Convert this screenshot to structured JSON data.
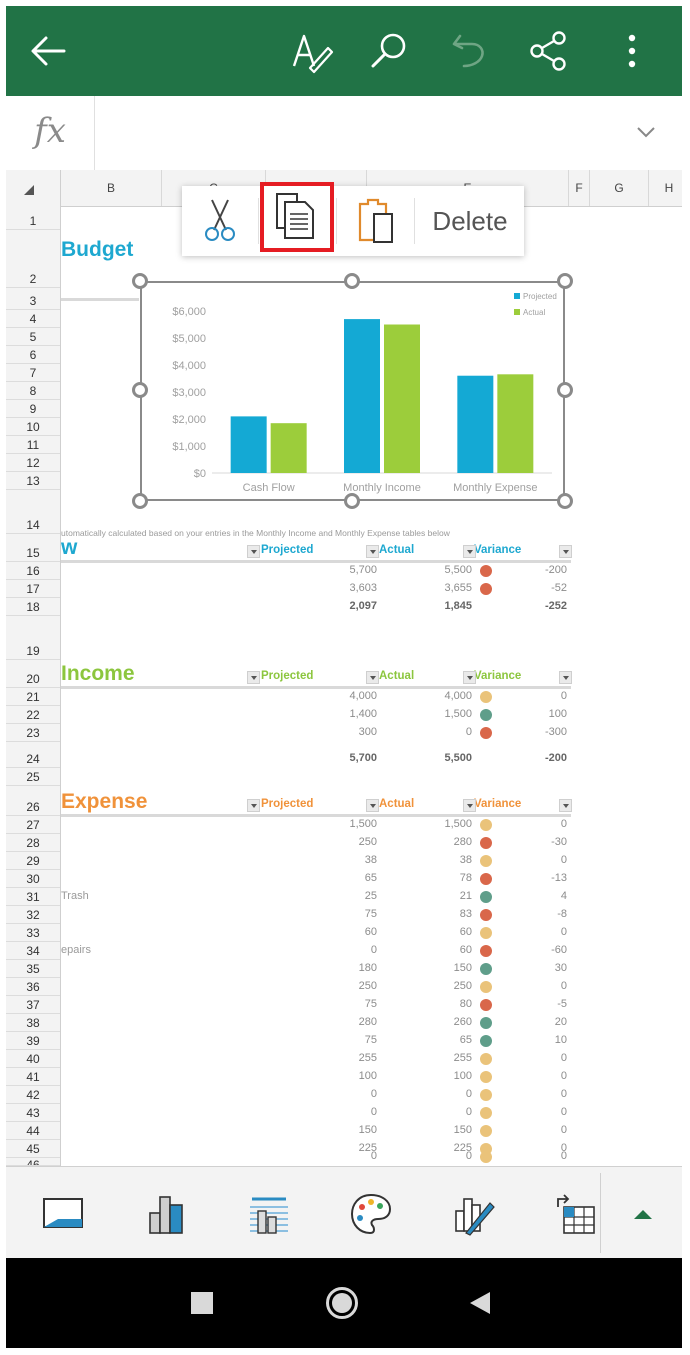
{
  "toolbar": {
    "icons": [
      "back-arrow-icon",
      "draw-pen-icon",
      "search-icon",
      "undo-icon",
      "share-icon",
      "more-icon"
    ],
    "theme_color": "#217346"
  },
  "formula_bar": {
    "fx_label": "fx",
    "value": ""
  },
  "columns": [
    "B",
    "C",
    "D",
    "E",
    "F",
    "G",
    "H"
  ],
  "rows": [
    "1",
    "2",
    "3",
    "4",
    "5",
    "6",
    "7",
    "8",
    "9",
    "10",
    "11",
    "12",
    "13",
    "14",
    "15",
    "16",
    "17",
    "18",
    "19",
    "20",
    "21",
    "22",
    "23",
    "24",
    "25",
    "26",
    "27",
    "28",
    "29",
    "30",
    "31",
    "32",
    "33",
    "34",
    "35",
    "36",
    "37",
    "38",
    "39",
    "40",
    "41",
    "42",
    "43",
    "44",
    "45",
    "46"
  ],
  "context_menu": {
    "items": [
      "cut",
      "copy",
      "paste"
    ],
    "delete_label": "Delete",
    "highlighted": "copy",
    "highlight_color": "#e51c23"
  },
  "sheet": {
    "title": "Budget",
    "note": "utomatically calculated based on your entries in the Monthly Income and Monthly Expense tables below",
    "col_projected": "Projected",
    "col_actual": "Actual",
    "col_variance": "Variance",
    "cashflow": {
      "title": "w",
      "rows": [
        {
          "label": "",
          "projected": "5,700",
          "actual": "5,500",
          "variance": "-200",
          "status": "red"
        },
        {
          "label": "",
          "projected": "3,603",
          "actual": "3,655",
          "variance": "-52",
          "status": "red"
        },
        {
          "label": "",
          "projected": "2,097",
          "actual": "1,845",
          "variance": "-252",
          "status": "none",
          "bold": true
        }
      ]
    },
    "income": {
      "title": "Income",
      "rows": [
        {
          "label": "",
          "projected": "4,000",
          "actual": "4,000",
          "variance": "0",
          "status": "yellow"
        },
        {
          "label": "",
          "projected": "1,400",
          "actual": "1,500",
          "variance": "100",
          "status": "green"
        },
        {
          "label": "",
          "projected": "300",
          "actual": "0",
          "variance": "-300",
          "status": "red"
        },
        {
          "label": "",
          "projected": "5,700",
          "actual": "5,500",
          "variance": "-200",
          "status": "none",
          "bold": true
        }
      ]
    },
    "expense": {
      "title": "Expense",
      "rows": [
        {
          "label": "",
          "projected": "1,500",
          "actual": "1,500",
          "variance": "0",
          "status": "yellow"
        },
        {
          "label": "",
          "projected": "250",
          "actual": "280",
          "variance": "-30",
          "status": "red"
        },
        {
          "label": "",
          "projected": "38",
          "actual": "38",
          "variance": "0",
          "status": "yellow"
        },
        {
          "label": "",
          "projected": "65",
          "actual": "78",
          "variance": "-13",
          "status": "red"
        },
        {
          "label": "Trash",
          "projected": "25",
          "actual": "21",
          "variance": "4",
          "status": "green"
        },
        {
          "label": "",
          "projected": "75",
          "actual": "83",
          "variance": "-8",
          "status": "red"
        },
        {
          "label": "",
          "projected": "60",
          "actual": "60",
          "variance": "0",
          "status": "yellow"
        },
        {
          "label": "epairs",
          "projected": "0",
          "actual": "60",
          "variance": "-60",
          "status": "red"
        },
        {
          "label": "",
          "projected": "180",
          "actual": "150",
          "variance": "30",
          "status": "green"
        },
        {
          "label": "",
          "projected": "250",
          "actual": "250",
          "variance": "0",
          "status": "yellow"
        },
        {
          "label": "",
          "projected": "75",
          "actual": "80",
          "variance": "-5",
          "status": "red"
        },
        {
          "label": "",
          "projected": "280",
          "actual": "260",
          "variance": "20",
          "status": "green"
        },
        {
          "label": "",
          "projected": "75",
          "actual": "65",
          "variance": "10",
          "status": "green"
        },
        {
          "label": "",
          "projected": "255",
          "actual": "255",
          "variance": "0",
          "status": "yellow"
        },
        {
          "label": "",
          "projected": "100",
          "actual": "100",
          "variance": "0",
          "status": "yellow"
        },
        {
          "label": "",
          "projected": "0",
          "actual": "0",
          "variance": "0",
          "status": "yellow"
        },
        {
          "label": "",
          "projected": "0",
          "actual": "0",
          "variance": "0",
          "status": "yellow"
        },
        {
          "label": "",
          "projected": "150",
          "actual": "150",
          "variance": "0",
          "status": "yellow"
        },
        {
          "label": "",
          "projected": "225",
          "actual": "225",
          "variance": "0",
          "status": "yellow"
        },
        {
          "label": "",
          "projected": "0",
          "actual": "0",
          "variance": "0",
          "status": "yellow"
        }
      ]
    }
  },
  "colors": {
    "cashflow_title": "#1ea8d0",
    "income_title": "#8cc63e",
    "expense_title": "#f0923a",
    "status_red": "#d9674a",
    "status_green": "#5f9e8a",
    "status_yellow": "#eac37a",
    "bar_projected": "#14a9d4",
    "bar_actual": "#9ccd3b"
  },
  "chart_data": {
    "type": "bar",
    "categories": [
      "Cash Flow",
      "Monthly Income",
      "Monthly Expense"
    ],
    "series": [
      {
        "name": "Projected",
        "values": [
          2097,
          5700,
          3603
        ]
      },
      {
        "name": "Actual",
        "values": [
          1845,
          5500,
          3655
        ]
      }
    ],
    "ylim": [
      0,
      6000
    ],
    "yticks": [
      "$0",
      "$1,000",
      "$2,000",
      "$3,000",
      "$4,000",
      "$5,000",
      "$6,000"
    ],
    "legend": "top-right",
    "grid": false
  },
  "bottom_toolbar": {
    "icons": [
      "chart-layout-icon",
      "chart-type-icon",
      "chart-elements-icon",
      "palette-icon",
      "chart-style-icon",
      "switch-row-column-icon",
      "expand-up-icon"
    ]
  },
  "navbar": {
    "icons": [
      "recents-icon",
      "home-icon",
      "back-icon"
    ]
  }
}
